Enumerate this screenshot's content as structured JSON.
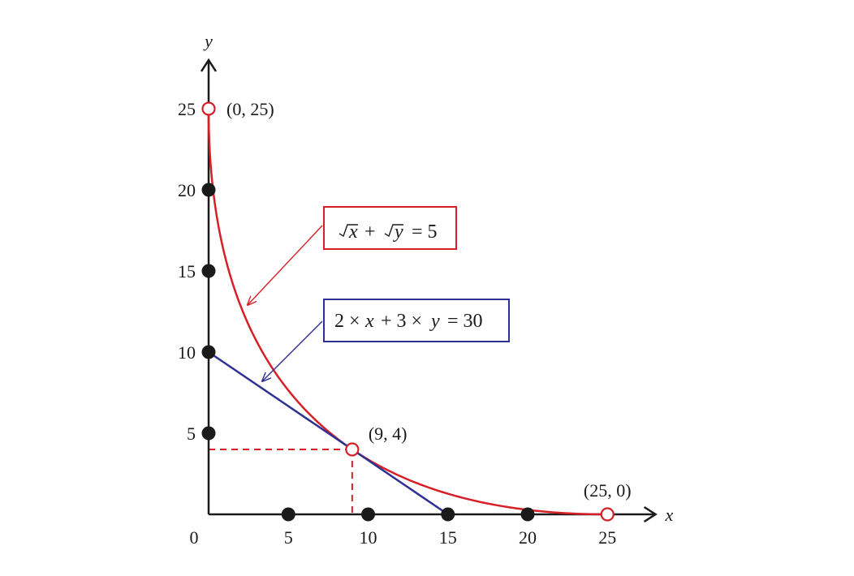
{
  "chart_data": {
    "type": "line",
    "title": "",
    "xlabel": "x",
    "ylabel": "y",
    "xlim": [
      0,
      27
    ],
    "ylim": [
      0,
      27
    ],
    "grid": false,
    "x_ticks": [
      {
        "value": 0,
        "label": "0"
      },
      {
        "value": 5,
        "label": "5"
      },
      {
        "value": 10,
        "label": "10"
      },
      {
        "value": 15,
        "label": "15"
      },
      {
        "value": 20,
        "label": "20"
      },
      {
        "value": 25,
        "label": "25"
      }
    ],
    "y_ticks": [
      {
        "value": 5,
        "label": "5"
      },
      {
        "value": 10,
        "label": "10"
      },
      {
        "value": 15,
        "label": "15"
      },
      {
        "value": 20,
        "label": "20"
      },
      {
        "value": 25,
        "label": "25"
      }
    ],
    "series": [
      {
        "equation": "√x + √y = 5",
        "color": "#d62027",
        "kind": "curve",
        "x_range": [
          0,
          25
        ]
      },
      {
        "equation": "2 × x + 3 × y = 30",
        "color": "#2e3192",
        "kind": "line",
        "points": [
          [
            0,
            10
          ],
          [
            15,
            0
          ]
        ]
      }
    ],
    "filled_points": [
      [
        0,
        5
      ],
      [
        0,
        10
      ],
      [
        0,
        15
      ],
      [
        0,
        20
      ],
      [
        5,
        0
      ],
      [
        10,
        0
      ],
      [
        15,
        0
      ],
      [
        20,
        0
      ]
    ],
    "open_points": [
      {
        "x": 0,
        "y": 25,
        "label": "(0, 25)"
      },
      {
        "x": 9,
        "y": 4,
        "label": "(9, 4)"
      },
      {
        "x": 25,
        "y": 0,
        "label": "(25, 0)"
      }
    ],
    "guide_lines": {
      "x": 9,
      "y": 4,
      "color": "#d62027",
      "style": "dashed"
    },
    "colors": {
      "curve": "#d62027",
      "line": "#2e3192",
      "axis": "#1a1a1a",
      "point": "#1a1a1a"
    }
  }
}
